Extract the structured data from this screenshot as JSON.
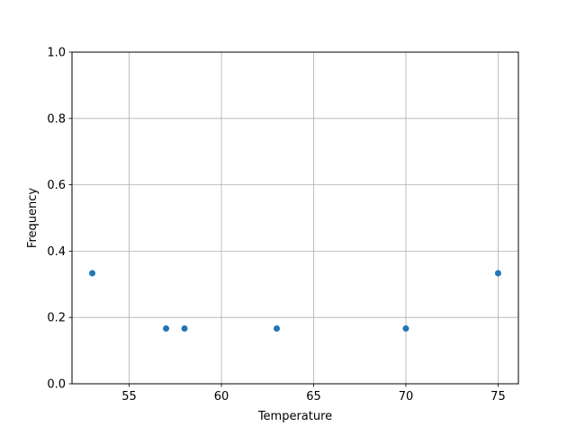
{
  "chart_data": {
    "type": "scatter",
    "title": "",
    "xlabel": "Temperature",
    "ylabel": "Frequency",
    "x": [
      53,
      57,
      58,
      63,
      70,
      75
    ],
    "y": [
      0.3333,
      0.1667,
      0.1667,
      0.1667,
      0.1667,
      0.3333
    ],
    "xlim": [
      51.9,
      76.1
    ],
    "ylim": [
      0,
      1
    ],
    "xticks": [
      "55",
      "60",
      "65",
      "70",
      "75"
    ],
    "yticks": [
      "0.0",
      "0.2",
      "0.4",
      "0.6",
      "0.8",
      "1.0"
    ],
    "grid": true,
    "color": "#1f77b4"
  }
}
